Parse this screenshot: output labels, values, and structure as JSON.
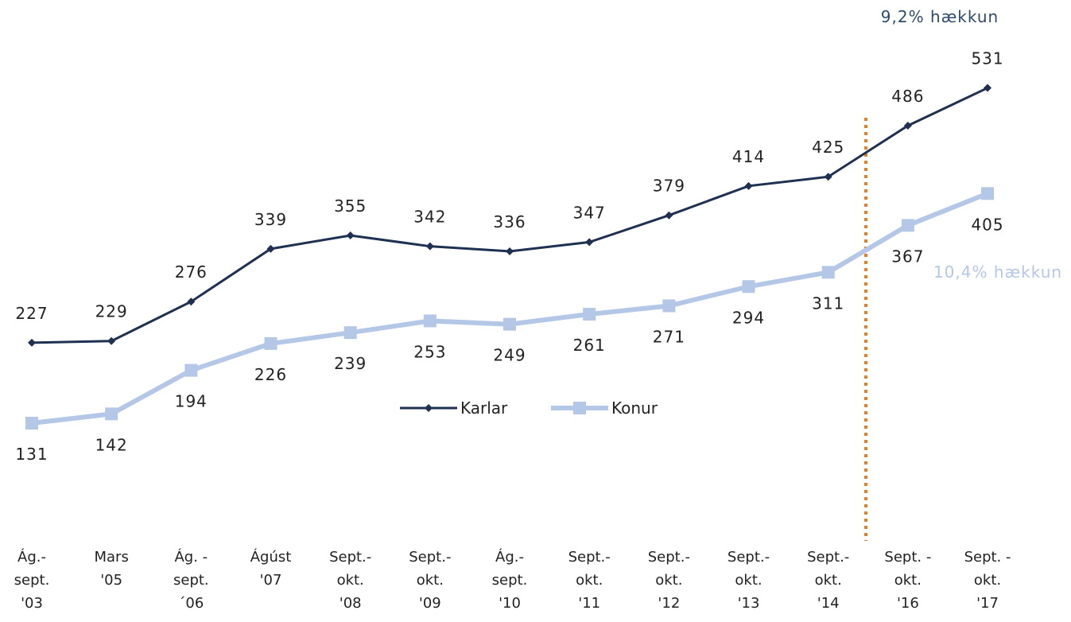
{
  "chart_data": {
    "type": "line",
    "categories": [
      [
        "Ág.-",
        "sept.",
        "'03"
      ],
      [
        "Mars",
        "'05"
      ],
      [
        "Ág. -",
        "sept.",
        "´06"
      ],
      [
        "Ágúst",
        "'07"
      ],
      [
        "Sept.-",
        "okt.",
        "'08"
      ],
      [
        "Sept.-",
        "okt.",
        "'09"
      ],
      [
        "Ág.-",
        "sept.",
        "'10"
      ],
      [
        "Sept.-",
        "okt.",
        "'11"
      ],
      [
        "Sept.-",
        "okt.",
        "'12"
      ],
      [
        "Sept.-",
        "okt.",
        "'13"
      ],
      [
        "Sept.-",
        "okt.",
        "'14"
      ],
      [
        "Sept. -",
        "okt.",
        "'16"
      ],
      [
        "Sept. -",
        "okt.",
        "'17"
      ]
    ],
    "series": [
      {
        "name": "Karlar",
        "color": "#1f3050",
        "values": [
          227,
          229,
          276,
          339,
          355,
          342,
          336,
          347,
          379,
          414,
          425,
          486,
          531
        ]
      },
      {
        "name": "Konur",
        "color": "#b4c7e7",
        "values": [
          131,
          142,
          194,
          226,
          239,
          253,
          249,
          261,
          271,
          294,
          311,
          367,
          405
        ]
      }
    ],
    "annotations": [
      "9,2% hækkun",
      "10,4% hækkun"
    ],
    "ylim": [
      0,
      560
    ],
    "legend": "center",
    "grid": false
  }
}
